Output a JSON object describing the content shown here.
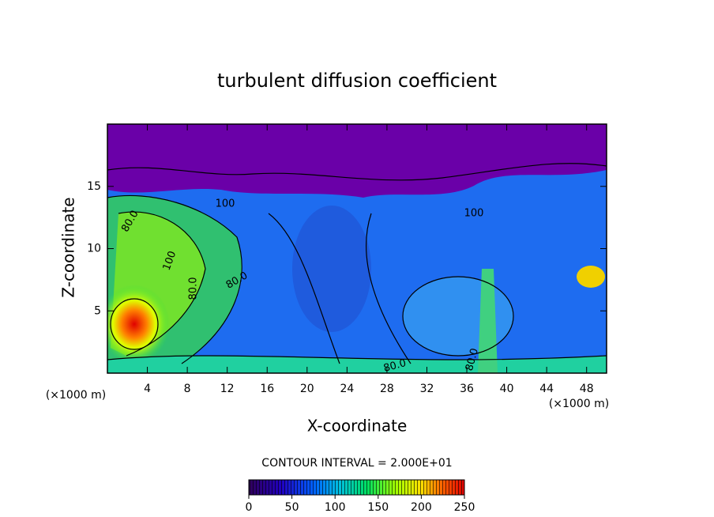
{
  "chart_data": {
    "type": "contour",
    "title": "turbulent diffusion coefficient",
    "xlabel": "X-coordinate",
    "ylabel": "Z-coordinate",
    "x_unit": "(×1000 m)",
    "y_unit": "(×1000 m)",
    "xlim": [
      0,
      50
    ],
    "xticks": [
      4,
      8,
      12,
      16,
      20,
      24,
      28,
      32,
      36,
      40,
      44,
      48
    ],
    "ylim": [
      0,
      20
    ],
    "yticks": [
      5,
      10,
      15
    ],
    "contour_interval": "CONTOUR INTERVAL = 2.000E+01",
    "contour_labels": [
      "80.0",
      "100",
      "80.0",
      "80.0",
      "100",
      "80.0",
      "80.0",
      "100"
    ],
    "colorbar": {
      "lim": [
        0,
        250
      ],
      "ticks": [
        0,
        50,
        100,
        150,
        200,
        250
      ]
    }
  }
}
